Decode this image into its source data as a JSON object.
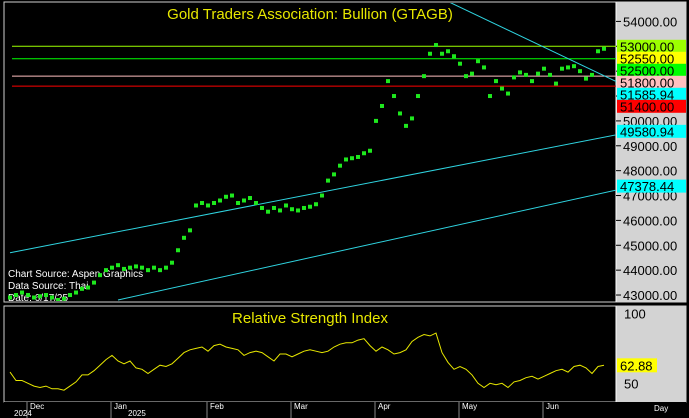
{
  "chart_data": [
    {
      "type": "scatter",
      "title": "Gold Traders Association: Bullion (GTAGB)",
      "source_lines": [
        "Chart Source: Aspen Graphics",
        "Data Source: Thai",
        "Date: 6/17/25"
      ],
      "ylim": [
        42800,
        54700
      ],
      "y_ticks": [
        "54000.00",
        "53000.00",
        "52000.00",
        "51000.00",
        "50000.00",
        "49000.00",
        "48000.00",
        "47000.00",
        "46000.00",
        "45000.00",
        "44000.00",
        "43000.00"
      ],
      "series": [
        {
          "values": [
            42900,
            43000,
            43100,
            43000,
            42900,
            42950,
            43000,
            42900,
            42800,
            42850,
            43000,
            43100,
            43250,
            43300,
            43500,
            43800,
            44000,
            44100,
            44200,
            44050,
            44100,
            44150,
            44100,
            44000,
            44100,
            44000,
            44100,
            44300,
            44800,
            45300,
            45600,
            46600,
            46700,
            46600,
            46700,
            46800,
            46950,
            47000,
            46700,
            46800,
            46900,
            46700,
            46500,
            46350,
            46500,
            46400,
            46600,
            46450,
            46400,
            46500,
            46550,
            46650,
            47000,
            47600,
            47850,
            48200,
            48450,
            48500,
            48550,
            48700,
            48800,
            50000,
            50600,
            51600,
            51000,
            50300,
            49800,
            50100,
            51000,
            51800,
            52700,
            53050,
            52700,
            52800,
            52600,
            52300,
            51800,
            51900,
            52400,
            52150,
            51000,
            51600,
            51300,
            51100,
            51750,
            51950,
            51850,
            51600,
            51900,
            52100,
            51850,
            51500,
            52100,
            52150,
            52200,
            52000,
            51700,
            51850,
            52800,
            52900
          ]
        }
      ],
      "price_lines": [
        {
          "label": "53000.00",
          "value": 53000,
          "label_bg": "#9cff00",
          "line": "#9cff00"
        },
        {
          "label": "52550.00",
          "value": 52550,
          "label_bg": "#ffff00",
          "line": null
        },
        {
          "label": "52500.00",
          "value": 52500,
          "label_bg": "#00ff00",
          "line": "#00ff00"
        },
        {
          "label": "51800.00",
          "value": 51800,
          "label_bg": "#ffc0c0",
          "line": "#ffc0c0"
        },
        {
          "label": "51585.94",
          "value": 51585.94,
          "label_bg": "#00ffff",
          "line": null
        },
        {
          "label": "51400.00",
          "value": 51400,
          "label_bg": "#ff0000",
          "line": "#ff0000"
        },
        {
          "label": "49580.94",
          "value": 49580.94,
          "label_bg": "#00ffff",
          "line": null
        },
        {
          "label": "47378.44",
          "value": 47378.44,
          "label_bg": "#00ffff",
          "line": null
        }
      ],
      "trendlines": [
        {
          "color": "#2fd4e0",
          "from": [
            0,
            44700
          ],
          "to": [
            104,
            49580.94
          ]
        },
        {
          "color": "#2fd4e0",
          "from": [
            18,
            42800
          ],
          "to": [
            104,
            47378.44
          ]
        },
        {
          "color": "#2fd4e0",
          "from": [
            73,
            54800
          ],
          "to": [
            101,
            51585.94
          ]
        }
      ]
    },
    {
      "type": "line",
      "title": "Relative Strength Index",
      "ylim": [
        38,
        104
      ],
      "y_ticks": [
        "100",
        "50"
      ],
      "last_value_label": "62.88",
      "series": [
        {
          "values": [
            58,
            52,
            52,
            50,
            48,
            47,
            48,
            46,
            46,
            45,
            48,
            51,
            56,
            56,
            59,
            63,
            67,
            70,
            66,
            64,
            66,
            61,
            60,
            57,
            60,
            63,
            62,
            64,
            68,
            72,
            74,
            75,
            76,
            73,
            77,
            78,
            76,
            75,
            74,
            70,
            72,
            73,
            72,
            69,
            66,
            71,
            71,
            69,
            71,
            73,
            74,
            73,
            72,
            73,
            76,
            78,
            79,
            79,
            81,
            82,
            77,
            73,
            76,
            74,
            71,
            72,
            74,
            80,
            83,
            85,
            84,
            86,
            72,
            65,
            60,
            62,
            60,
            56,
            50,
            47,
            50,
            49,
            50,
            47,
            51,
            52,
            54,
            55,
            53,
            55,
            57,
            59,
            60,
            58,
            62,
            63,
            61,
            57,
            62,
            63
          ]
        }
      ]
    }
  ],
  "x_axis": {
    "months": [
      "Dec",
      "Jan",
      "Feb",
      "Mar",
      "Apr",
      "May",
      "Jun"
    ],
    "years": [
      "2024",
      "2025"
    ],
    "unit_label": "Day"
  }
}
